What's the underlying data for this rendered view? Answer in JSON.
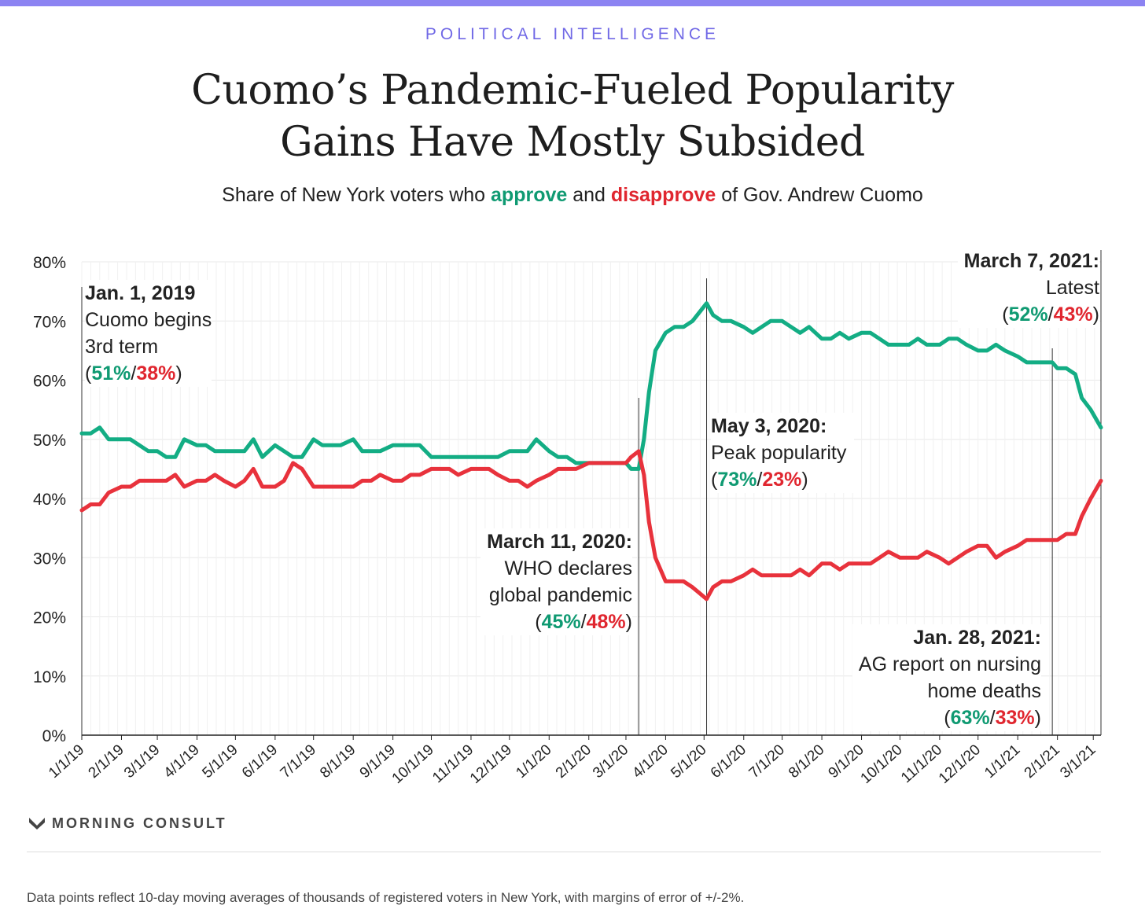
{
  "header": {
    "kicker": "POLITICAL INTELLIGENCE",
    "title_line1": "Cuomo’s Pandemic-Fueled Popularity",
    "title_line2": "Gains Have Mostly Subsided",
    "subtitle_pre": "Share of New York voters who ",
    "subtitle_approve": "approve",
    "subtitle_mid": " and ",
    "subtitle_disapprove": "disapprove",
    "subtitle_post": " of Gov. Andrew Cuomo"
  },
  "colors": {
    "approve": "#13ad84",
    "disapprove": "#e8323c",
    "approve_text": "#0f9a72",
    "disapprove_text": "#e0262f",
    "accent_bar": "#8c83f2",
    "kicker": "#7169e6",
    "grid": "#e8e8e8"
  },
  "annotations": {
    "jan2019": {
      "date": "Jan. 1, 2019",
      "line1": "Cuomo begins",
      "line2": "3rd term",
      "approve": "51%",
      "disapprove": "38%",
      "sep": "/"
    },
    "mar2020": {
      "date": "March 11, 2020:",
      "line1": "WHO declares",
      "line2": "global pandemic",
      "approve": "45%",
      "disapprove": "48%",
      "sep": "/"
    },
    "may2020": {
      "date": "May 3, 2020:",
      "line1": "Peak popularity",
      "approve": "73%",
      "disapprove": "23%",
      "sep": "/"
    },
    "jan2021": {
      "date": "Jan. 28, 2021:",
      "line1": "AG report on nursing",
      "line2": "home deaths",
      "approve": "63%",
      "disapprove": "33%",
      "sep": "/"
    },
    "mar2021": {
      "date": "March 7, 2021:",
      "line1": "Latest",
      "approve": "52%",
      "disapprove": "43%",
      "sep": "/"
    }
  },
  "footer": {
    "brand": "MORNING CONSULT",
    "brand_icon": "morning-consult-logo-icon",
    "note": "Data points reflect 10-day moving averages of thousands of registered voters in New York, with margins of error of +/-2%."
  },
  "chart_data": {
    "type": "line",
    "x_ticks": [
      "1/1/19",
      "2/1/19",
      "3/1/19",
      "4/1/19",
      "5/1/19",
      "6/1/19",
      "7/1/19",
      "8/1/19",
      "9/1/19",
      "10/1/19",
      "11/1/19",
      "12/1/19",
      "1/1/20",
      "2/1/20",
      "3/1/20",
      "4/1/20",
      "5/1/20",
      "6/1/20",
      "7/1/20",
      "8/1/20",
      "9/1/20",
      "10/1/20",
      "11/1/20",
      "12/1/20",
      "1/1/21",
      "2/1/21",
      "3/1/21"
    ],
    "y_ticks": [
      "0%",
      "10%",
      "20%",
      "30%",
      "40%",
      "50%",
      "60%",
      "70%",
      "80%"
    ],
    "ylim": [
      0,
      80
    ],
    "xlim": [
      "2019-01-01",
      "2021-03-07"
    ],
    "grid": true,
    "event_lines": [
      "2019-01-01",
      "2020-03-11",
      "2020-05-03",
      "2021-01-28",
      "2021-03-07"
    ],
    "series": [
      {
        "name": "approve",
        "points": [
          [
            "2019-01-01",
            51
          ],
          [
            "2019-01-08",
            51
          ],
          [
            "2019-01-15",
            52
          ],
          [
            "2019-01-22",
            50
          ],
          [
            "2019-02-01",
            50
          ],
          [
            "2019-02-08",
            50
          ],
          [
            "2019-02-15",
            49
          ],
          [
            "2019-02-22",
            48
          ],
          [
            "2019-03-01",
            48
          ],
          [
            "2019-03-08",
            47
          ],
          [
            "2019-03-15",
            47
          ],
          [
            "2019-03-22",
            50
          ],
          [
            "2019-04-01",
            49
          ],
          [
            "2019-04-08",
            49
          ],
          [
            "2019-04-15",
            48
          ],
          [
            "2019-04-22",
            48
          ],
          [
            "2019-05-01",
            48
          ],
          [
            "2019-05-08",
            48
          ],
          [
            "2019-05-15",
            50
          ],
          [
            "2019-05-22",
            47
          ],
          [
            "2019-06-01",
            49
          ],
          [
            "2019-06-08",
            48
          ],
          [
            "2019-06-15",
            47
          ],
          [
            "2019-06-22",
            47
          ],
          [
            "2019-07-01",
            50
          ],
          [
            "2019-07-08",
            49
          ],
          [
            "2019-07-15",
            49
          ],
          [
            "2019-07-22",
            49
          ],
          [
            "2019-08-01",
            50
          ],
          [
            "2019-08-08",
            48
          ],
          [
            "2019-08-15",
            48
          ],
          [
            "2019-08-22",
            48
          ],
          [
            "2019-09-01",
            49
          ],
          [
            "2019-09-08",
            49
          ],
          [
            "2019-09-15",
            49
          ],
          [
            "2019-09-22",
            49
          ],
          [
            "2019-10-01",
            47
          ],
          [
            "2019-10-08",
            47
          ],
          [
            "2019-10-15",
            47
          ],
          [
            "2019-10-22",
            47
          ],
          [
            "2019-11-01",
            47
          ],
          [
            "2019-11-08",
            47
          ],
          [
            "2019-11-15",
            47
          ],
          [
            "2019-11-22",
            47
          ],
          [
            "2019-12-01",
            48
          ],
          [
            "2019-12-08",
            48
          ],
          [
            "2019-12-15",
            48
          ],
          [
            "2019-12-22",
            50
          ],
          [
            "2020-01-01",
            48
          ],
          [
            "2020-01-08",
            47
          ],
          [
            "2020-01-15",
            47
          ],
          [
            "2020-01-22",
            46
          ],
          [
            "2020-02-01",
            46
          ],
          [
            "2020-02-08",
            46
          ],
          [
            "2020-02-15",
            46
          ],
          [
            "2020-02-22",
            46
          ],
          [
            "2020-03-01",
            46
          ],
          [
            "2020-03-05",
            45
          ],
          [
            "2020-03-11",
            45
          ],
          [
            "2020-03-15",
            50
          ],
          [
            "2020-03-19",
            58
          ],
          [
            "2020-03-24",
            65
          ],
          [
            "2020-04-01",
            68
          ],
          [
            "2020-04-08",
            69
          ],
          [
            "2020-04-15",
            69
          ],
          [
            "2020-04-22",
            70
          ],
          [
            "2020-05-03",
            73
          ],
          [
            "2020-05-08",
            71
          ],
          [
            "2020-05-15",
            70
          ],
          [
            "2020-05-22",
            70
          ],
          [
            "2020-06-01",
            69
          ],
          [
            "2020-06-08",
            68
          ],
          [
            "2020-06-15",
            69
          ],
          [
            "2020-06-22",
            70
          ],
          [
            "2020-07-01",
            70
          ],
          [
            "2020-07-08",
            69
          ],
          [
            "2020-07-15",
            68
          ],
          [
            "2020-07-22",
            69
          ],
          [
            "2020-08-01",
            67
          ],
          [
            "2020-08-08",
            67
          ],
          [
            "2020-08-15",
            68
          ],
          [
            "2020-08-22",
            67
          ],
          [
            "2020-09-01",
            68
          ],
          [
            "2020-09-08",
            68
          ],
          [
            "2020-09-15",
            67
          ],
          [
            "2020-09-22",
            66
          ],
          [
            "2020-10-01",
            66
          ],
          [
            "2020-10-08",
            66
          ],
          [
            "2020-10-15",
            67
          ],
          [
            "2020-10-22",
            66
          ],
          [
            "2020-11-01",
            66
          ],
          [
            "2020-11-08",
            67
          ],
          [
            "2020-11-15",
            67
          ],
          [
            "2020-11-22",
            66
          ],
          [
            "2020-12-01",
            65
          ],
          [
            "2020-12-08",
            65
          ],
          [
            "2020-12-15",
            66
          ],
          [
            "2020-12-22",
            65
          ],
          [
            "2021-01-01",
            64
          ],
          [
            "2021-01-08",
            63
          ],
          [
            "2021-01-15",
            63
          ],
          [
            "2021-01-28",
            63
          ],
          [
            "2021-02-01",
            62
          ],
          [
            "2021-02-08",
            62
          ],
          [
            "2021-02-15",
            61
          ],
          [
            "2021-02-20",
            57
          ],
          [
            "2021-02-27",
            55
          ],
          [
            "2021-03-07",
            52
          ]
        ]
      },
      {
        "name": "disapprove",
        "points": [
          [
            "2019-01-01",
            38
          ],
          [
            "2019-01-08",
            39
          ],
          [
            "2019-01-15",
            39
          ],
          [
            "2019-01-22",
            41
          ],
          [
            "2019-02-01",
            42
          ],
          [
            "2019-02-08",
            42
          ],
          [
            "2019-02-15",
            43
          ],
          [
            "2019-02-22",
            43
          ],
          [
            "2019-03-01",
            43
          ],
          [
            "2019-03-08",
            43
          ],
          [
            "2019-03-15",
            44
          ],
          [
            "2019-03-22",
            42
          ],
          [
            "2019-04-01",
            43
          ],
          [
            "2019-04-08",
            43
          ],
          [
            "2019-04-15",
            44
          ],
          [
            "2019-04-22",
            43
          ],
          [
            "2019-05-01",
            42
          ],
          [
            "2019-05-08",
            43
          ],
          [
            "2019-05-15",
            45
          ],
          [
            "2019-05-22",
            42
          ],
          [
            "2019-06-01",
            42
          ],
          [
            "2019-06-08",
            43
          ],
          [
            "2019-06-15",
            46
          ],
          [
            "2019-06-22",
            45
          ],
          [
            "2019-07-01",
            42
          ],
          [
            "2019-07-08",
            42
          ],
          [
            "2019-07-15",
            42
          ],
          [
            "2019-07-22",
            42
          ],
          [
            "2019-08-01",
            42
          ],
          [
            "2019-08-08",
            43
          ],
          [
            "2019-08-15",
            43
          ],
          [
            "2019-08-22",
            44
          ],
          [
            "2019-09-01",
            43
          ],
          [
            "2019-09-08",
            43
          ],
          [
            "2019-09-15",
            44
          ],
          [
            "2019-09-22",
            44
          ],
          [
            "2019-10-01",
            45
          ],
          [
            "2019-10-08",
            45
          ],
          [
            "2019-10-15",
            45
          ],
          [
            "2019-10-22",
            44
          ],
          [
            "2019-11-01",
            45
          ],
          [
            "2019-11-08",
            45
          ],
          [
            "2019-11-15",
            45
          ],
          [
            "2019-11-22",
            44
          ],
          [
            "2019-12-01",
            43
          ],
          [
            "2019-12-08",
            43
          ],
          [
            "2019-12-15",
            42
          ],
          [
            "2019-12-22",
            43
          ],
          [
            "2020-01-01",
            44
          ],
          [
            "2020-01-08",
            45
          ],
          [
            "2020-01-15",
            45
          ],
          [
            "2020-01-22",
            45
          ],
          [
            "2020-02-01",
            46
          ],
          [
            "2020-02-08",
            46
          ],
          [
            "2020-02-15",
            46
          ],
          [
            "2020-02-22",
            46
          ],
          [
            "2020-03-01",
            46
          ],
          [
            "2020-03-05",
            47
          ],
          [
            "2020-03-11",
            48
          ],
          [
            "2020-03-15",
            44
          ],
          [
            "2020-03-19",
            36
          ],
          [
            "2020-03-24",
            30
          ],
          [
            "2020-04-01",
            26
          ],
          [
            "2020-04-08",
            26
          ],
          [
            "2020-04-15",
            26
          ],
          [
            "2020-04-22",
            25
          ],
          [
            "2020-05-03",
            23
          ],
          [
            "2020-05-08",
            25
          ],
          [
            "2020-05-15",
            26
          ],
          [
            "2020-05-22",
            26
          ],
          [
            "2020-06-01",
            27
          ],
          [
            "2020-06-08",
            28
          ],
          [
            "2020-06-15",
            27
          ],
          [
            "2020-06-22",
            27
          ],
          [
            "2020-07-01",
            27
          ],
          [
            "2020-07-08",
            27
          ],
          [
            "2020-07-15",
            28
          ],
          [
            "2020-07-22",
            27
          ],
          [
            "2020-08-01",
            29
          ],
          [
            "2020-08-08",
            29
          ],
          [
            "2020-08-15",
            28
          ],
          [
            "2020-08-22",
            29
          ],
          [
            "2020-09-01",
            29
          ],
          [
            "2020-09-08",
            29
          ],
          [
            "2020-09-15",
            30
          ],
          [
            "2020-09-22",
            31
          ],
          [
            "2020-10-01",
            30
          ],
          [
            "2020-10-08",
            30
          ],
          [
            "2020-10-15",
            30
          ],
          [
            "2020-10-22",
            31
          ],
          [
            "2020-11-01",
            30
          ],
          [
            "2020-11-08",
            29
          ],
          [
            "2020-11-15",
            30
          ],
          [
            "2020-11-22",
            31
          ],
          [
            "2020-12-01",
            32
          ],
          [
            "2020-12-08",
            32
          ],
          [
            "2020-12-15",
            30
          ],
          [
            "2020-12-22",
            31
          ],
          [
            "2021-01-01",
            32
          ],
          [
            "2021-01-08",
            33
          ],
          [
            "2021-01-15",
            33
          ],
          [
            "2021-01-28",
            33
          ],
          [
            "2021-02-01",
            33
          ],
          [
            "2021-02-08",
            34
          ],
          [
            "2021-02-15",
            34
          ],
          [
            "2021-02-20",
            37
          ],
          [
            "2021-02-27",
            40
          ],
          [
            "2021-03-07",
            43
          ]
        ]
      }
    ]
  }
}
